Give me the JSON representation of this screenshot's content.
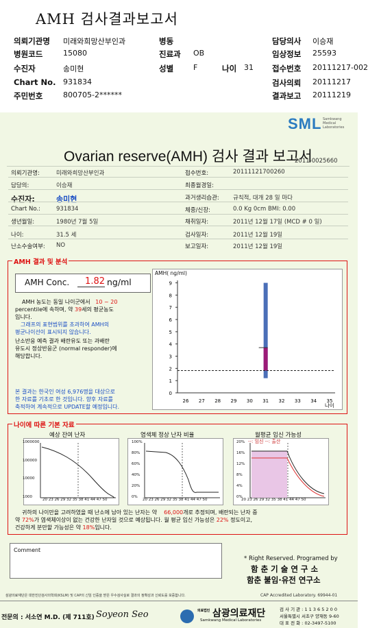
{
  "header": {
    "title": "AMH 검사결과보고서",
    "rows": [
      {
        "l1": "의뢰기관명",
        "v1": "미래와희망산부인과",
        "l2": "병동",
        "v2": "",
        "l3": "",
        "v3": "",
        "l4": "담당의사",
        "v4": "이승재"
      },
      {
        "l1": "병원코드",
        "v1": "15080",
        "l2": "진료과",
        "v2": "OB",
        "l3": "",
        "v3": "",
        "l4": "임상정보",
        "v4": "25593"
      },
      {
        "l1": "수진자",
        "v1": "송미현",
        "l2": "성별",
        "v2": "F",
        "l3": "나이",
        "v3": "31",
        "l4": "접수번호",
        "v4": "20111217-002"
      },
      {
        "l1": "Chart No.",
        "v1": "931834",
        "l2": "",
        "v2": "",
        "l3": "",
        "v3": "",
        "l4": "검사의뢰",
        "v4": "20111217"
      },
      {
        "l1": "주민번호",
        "v1": "800705-2******",
        "l2": "",
        "v2": "",
        "l3": "",
        "v3": "",
        "l4": "결과보고",
        "v4": "20111219"
      }
    ]
  },
  "report": {
    "logo": "SML",
    "logo_sub": [
      "Samkwang",
      "Medical",
      "Laboratories"
    ],
    "title": "Ovarian reserve(AMH) 검사 결과 보고서",
    "report_no": "2011-0025660",
    "left_info": [
      {
        "label": "의뢰기관명:",
        "value": "미래와희망산부인과"
      },
      {
        "label": "담당의:",
        "value": "이승재"
      },
      {
        "label": "수진자:",
        "value": "송미현"
      },
      {
        "label": "Chart No.:",
        "value": "931834"
      },
      {
        "label": "생년월일:",
        "value": "1980년 7월 5일"
      },
      {
        "label": "나이:",
        "value": "31.5 세"
      },
      {
        "label": "난소수술여부:",
        "value": "NO"
      }
    ],
    "right_info": [
      {
        "label": "접수번호:",
        "value": "20111121700260"
      },
      {
        "label": "최종월경일:",
        "value": ""
      },
      {
        "label": "과거생리습관:",
        "value": "규칙적, 대개  28 일 마다"
      },
      {
        "label": "체중/신장:",
        "value": "0.0 Kg      0cm    BMI:    0.00"
      },
      {
        "label": "채취일자:",
        "value": "2011년 12월 17일  (MCD # 0 일)"
      },
      {
        "label": "검사일자:",
        "value": "2011년 12월 19일"
      },
      {
        "label": "보고일자:",
        "value": "2011년 12월 19일"
      }
    ],
    "amh_section": {
      "heading": "AMH 결과 및 분석",
      "conc_label": "AMH Conc.",
      "conc_value": "1.82",
      "conc_unit": "ng/ml",
      "para1": [
        "AMH 농도는 동일 나이군에서",
        "percentile에 속하며, 약",
        "세의 평균농도",
        "입니다."
      ],
      "pct_range": "10 ~ 20",
      "avg_age": "39",
      "para2": [
        "그래프의 표현범위를 초과하여 AMH의",
        "평균나이선이 표시되지 않습니다."
      ],
      "para3": [
        "난소반응 예측 결과 배란유도 또는 과배란",
        "유도시 정상반응군 (normal responder)에",
        "해당합니다."
      ],
      "para4": [
        "본 결과는 한국인 여성 6,976명을 대상으로",
        "한 자료를 기초로 한 것입니다. 향후 자료를",
        "축적하여 계속적으로 UPDATE할 예정입니다."
      ]
    },
    "amh_chart": {
      "ylabel": "AMH( ng/ml)",
      "xlabel": "나이",
      "yticks": [
        "0",
        "1",
        "2",
        "3",
        "4",
        "5",
        "6",
        "7",
        "8",
        "9"
      ],
      "xticks": [
        "26",
        "27",
        "28",
        "29",
        "30",
        "31",
        "32",
        "33",
        "34",
        "35"
      ]
    },
    "age_section": {
      "heading": "나이에 따른 기본 자료",
      "chart1_title": "예상 잔여 난자",
      "chart1_yticks": [
        "1000000",
        "100000",
        "10000",
        "1000"
      ],
      "chart2_title": "염색체 정상 난자 비율",
      "chart2_yticks": [
        "100%",
        "80%",
        "60%",
        "40%",
        "20%",
        "0%"
      ],
      "chart3_title": "월평균 임신 가능성",
      "chart3_legend": "--: 임신 --: 출산",
      "chart3_yticks": [
        "20%",
        "16%",
        "12%",
        "8%",
        "4%",
        "0%"
      ],
      "xticks": "20 23 26 29 32 35 38 41 44 47 50",
      "summary1": [
        "귀하의 나이만을 고려하였을 때 난소에 남아 있는 난자는 약",
        "개로 추정되며, 배란되는 난자 중"
      ],
      "eggs": "66,000",
      "summary2": [
        "약",
        "가 염색체이상이 없는 건강한 난자일 것으로 예상됩니다. 월 평균 임신 가능성은",
        "정도이고,"
      ],
      "pct_normal": "72%",
      "pct_preg": "22%",
      "summary3": [
        "건강하게 분만할 가능성은 약",
        "입니다."
      ],
      "pct_birth": "18%"
    },
    "comment_label": "Comment",
    "rights": "* Right Reserved. Programed by",
    "org1": "함 춘 기 술 연 구 소",
    "org2": "함춘 불임·유전 연구소",
    "footnote": "삼광의료재단은 대한진단검사의학회(KSLM) 및 CAP의 신임 인증을 받은 우수검사실로 결과의 정확성과 신뢰도를 보증합니다.",
    "cap": "CAP  Accredited  Laboratory.  69944-01",
    "doctor": "전문의 : 서소연 M.D. (제 711호)",
    "signature": "Soyeon Seo",
    "foundation": "삼광의료재단",
    "foundation_prefix": "의료법인",
    "foundation_en": "Samkwang Medical Laboratories",
    "contact": [
      "검 사 기 관 : 1 1 3 6 5 2 0 0",
      "서울특별시 서초구 양재동 9-60",
      "대 표 전 화 : 02-3497-5100"
    ]
  }
}
